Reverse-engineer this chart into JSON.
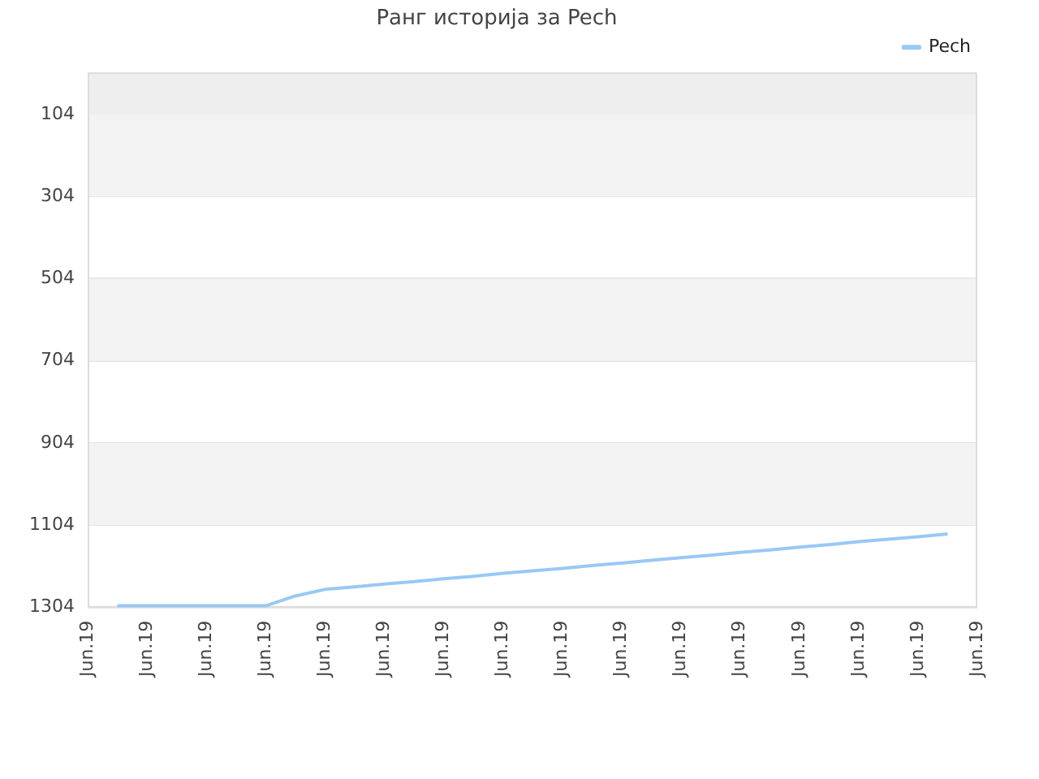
{
  "chart_data": {
    "type": "line",
    "title": "Ранг историја за Pech",
    "categories": [
      "Jun.19",
      null,
      "Jun.19",
      null,
      "Jun.19",
      null,
      "Jun.19",
      null,
      "Jun.19",
      null,
      "Jun.19",
      null,
      "Jun.19",
      null,
      "Jun.19",
      null,
      "Jun.19",
      null,
      "Jun.19",
      null,
      "Jun.19",
      null,
      "Jun.19",
      null,
      "Jun.19",
      null,
      "Jun.19",
      null,
      "Jun.19",
      null,
      "Jun.19"
    ],
    "series": [
      {
        "name": "Pech",
        "color": "#99c8f5",
        "values": [
          null,
          1300,
          1300,
          1300,
          1300,
          1300,
          1300,
          1276,
          1260,
          1254,
          1247,
          1241,
          1234,
          1228,
          1221,
          1215,
          1209,
          1202,
          1196,
          1189,
          1183,
          1177,
          1170,
          1164,
          1157,
          1151,
          1144,
          1138,
          1132,
          1125,
          null
        ]
      }
    ],
    "ylim": [
      1304,
      2
    ],
    "yticks": [
      104,
      304,
      504,
      704,
      904,
      1104,
      1304
    ],
    "bands": [
      {
        "axis": "y",
        "from": 2,
        "to": 104,
        "color": "#eeeeee"
      },
      {
        "axis": "y",
        "from": 104,
        "to": 304,
        "color": "#f3f3f3"
      },
      {
        "axis": "y",
        "from": 504,
        "to": 704,
        "color": "#f3f3f3"
      },
      {
        "axis": "y",
        "from": 904,
        "to": 1104,
        "color": "#f3f3f3"
      }
    ],
    "grid": "y",
    "legend": "top right",
    "marker": "none",
    "line_style": "solid"
  }
}
